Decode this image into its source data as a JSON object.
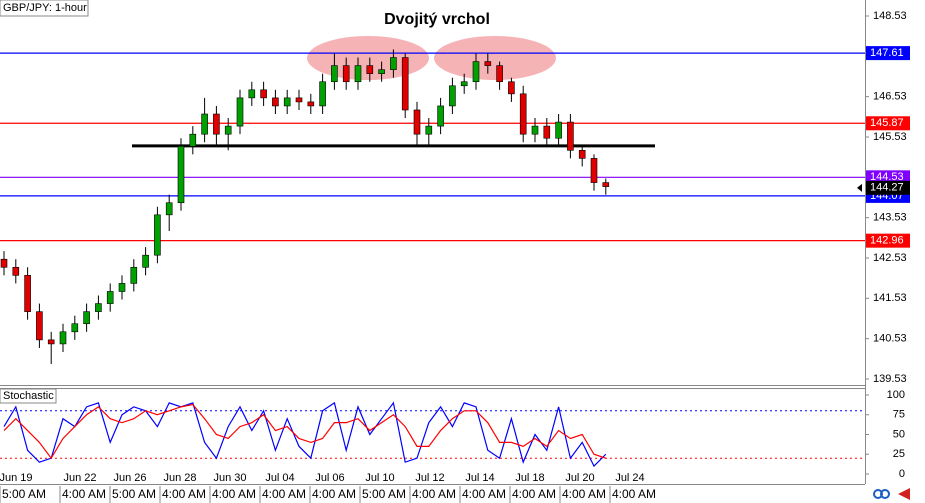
{
  "chart_data": {
    "type": "candlestick",
    "symbol_label": "GBP/JPY: 1-hour",
    "title": "Dvojitý vrchol",
    "ylim": [
      139.53,
      148.53
    ],
    "yticks": [
      148.53,
      147.53,
      146.53,
      145.53,
      144.53,
      143.53,
      142.53,
      141.53,
      140.53,
      139.53
    ],
    "up_color": "#00a000",
    "down_color": "#e00000",
    "candles": [
      [
        142.5,
        142.7,
        142.1,
        142.3
      ],
      [
        142.3,
        142.5,
        141.9,
        142.1
      ],
      [
        142.1,
        142.3,
        141.0,
        141.2
      ],
      [
        141.2,
        141.4,
        140.3,
        140.5
      ],
      [
        140.5,
        140.7,
        139.9,
        140.4
      ],
      [
        140.4,
        140.9,
        140.2,
        140.7
      ],
      [
        140.7,
        141.1,
        140.5,
        140.9
      ],
      [
        140.9,
        141.4,
        140.7,
        141.2
      ],
      [
        141.2,
        141.6,
        141.0,
        141.4
      ],
      [
        141.4,
        141.9,
        141.2,
        141.7
      ],
      [
        141.7,
        142.1,
        141.5,
        141.9
      ],
      [
        141.9,
        142.5,
        141.7,
        142.3
      ],
      [
        142.3,
        142.8,
        142.1,
        142.6
      ],
      [
        142.6,
        143.8,
        142.4,
        143.6
      ],
      [
        143.6,
        144.1,
        143.2,
        143.9
      ],
      [
        143.9,
        145.5,
        143.7,
        145.3
      ],
      [
        145.3,
        145.8,
        145.1,
        145.6
      ],
      [
        145.6,
        146.5,
        145.4,
        146.1
      ],
      [
        146.1,
        146.3,
        145.3,
        145.6
      ],
      [
        145.6,
        146.0,
        145.2,
        145.8
      ],
      [
        145.8,
        146.7,
        145.6,
        146.5
      ],
      [
        146.5,
        146.9,
        146.3,
        146.7
      ],
      [
        146.7,
        146.9,
        146.3,
        146.5
      ],
      [
        146.5,
        146.7,
        146.1,
        146.3
      ],
      [
        146.3,
        146.7,
        146.1,
        146.5
      ],
      [
        146.5,
        146.7,
        146.2,
        146.4
      ],
      [
        146.4,
        146.6,
        146.1,
        146.3
      ],
      [
        146.3,
        147.1,
        146.1,
        146.9
      ],
      [
        146.9,
        147.6,
        146.7,
        147.3
      ],
      [
        147.3,
        147.5,
        146.7,
        146.9
      ],
      [
        146.9,
        147.5,
        146.7,
        147.3
      ],
      [
        147.3,
        147.5,
        146.9,
        147.1
      ],
      [
        147.1,
        147.4,
        146.9,
        147.2
      ],
      [
        147.2,
        147.7,
        147.0,
        147.5
      ],
      [
        147.5,
        147.6,
        146.0,
        146.2
      ],
      [
        146.2,
        146.4,
        145.3,
        145.6
      ],
      [
        145.6,
        146.0,
        145.3,
        145.8
      ],
      [
        145.8,
        146.5,
        145.6,
        146.3
      ],
      [
        146.3,
        147.0,
        146.1,
        146.8
      ],
      [
        146.8,
        147.1,
        146.6,
        146.9
      ],
      [
        146.9,
        147.6,
        146.7,
        147.4
      ],
      [
        147.4,
        147.6,
        147.1,
        147.3
      ],
      [
        147.3,
        147.4,
        146.7,
        146.9
      ],
      [
        146.9,
        147.0,
        146.4,
        146.6
      ],
      [
        146.6,
        146.8,
        145.4,
        145.6
      ],
      [
        145.6,
        146.0,
        145.4,
        145.8
      ],
      [
        145.8,
        146.0,
        145.3,
        145.5
      ],
      [
        145.5,
        146.1,
        145.3,
        145.9
      ],
      [
        145.9,
        146.1,
        145.0,
        145.2
      ],
      [
        145.2,
        145.3,
        144.8,
        145.0
      ],
      [
        145.0,
        145.1,
        144.2,
        144.4
      ],
      [
        144.4,
        144.5,
        144.1,
        144.3
      ]
    ],
    "levels": [
      {
        "value": 147.61,
        "color": "#0000ff"
      },
      {
        "value": 145.87,
        "color": "#ff0000"
      },
      {
        "value": 144.53,
        "color": "#8000ff"
      },
      {
        "value": 144.07,
        "color": "#0000ff"
      },
      {
        "value": 142.96,
        "color": "#ff0000"
      }
    ],
    "current_price": 144.27,
    "neckline": 145.31,
    "stochastic": {
      "label": "Stochastic",
      "ylim": [
        0,
        100
      ],
      "yticks": [
        100,
        75,
        50,
        25,
        0
      ],
      "levels": [
        80,
        20
      ],
      "series": [
        {
          "color": "#0000ff",
          "values": [
            60,
            85,
            30,
            15,
            20,
            70,
            60,
            85,
            90,
            40,
            75,
            85,
            80,
            60,
            90,
            85,
            90,
            40,
            20,
            60,
            85,
            55,
            80,
            30,
            70,
            35,
            20,
            80,
            90,
            30,
            85,
            50,
            70,
            90,
            15,
            20,
            65,
            85,
            60,
            90,
            85,
            30,
            20,
            70,
            15,
            50,
            30,
            85,
            20,
            40,
            10,
            25
          ]
        },
        {
          "color": "#ff0000",
          "values": [
            55,
            70,
            55,
            40,
            20,
            45,
            60,
            75,
            85,
            70,
            65,
            70,
            80,
            75,
            80,
            85,
            88,
            70,
            50,
            45,
            60,
            65,
            75,
            55,
            60,
            45,
            40,
            45,
            65,
            65,
            70,
            55,
            65,
            75,
            60,
            35,
            35,
            55,
            70,
            80,
            80,
            65,
            40,
            40,
            35,
            45,
            35,
            55,
            45,
            50,
            25,
            20
          ]
        }
      ]
    },
    "x_dates": [
      "Jun 19",
      "Jun 22",
      "Jun 26",
      "Jun 28",
      "Jun 30",
      "Jul 04",
      "Jul 06",
      "Jul 10",
      "Jul 12",
      "Jul 14",
      "Jul 18",
      "Jul 20",
      "Jul 24"
    ],
    "x_times": [
      "5:00 AM",
      "4:00 AM",
      "5:00 AM",
      "4:00 AM",
      "4:00 AM",
      "4:00 AM",
      "4:00 AM",
      "5:00 AM",
      "4:00 AM",
      "4:00 AM",
      "4:00 AM",
      "4:00 AM",
      "4:00 AM"
    ]
  }
}
